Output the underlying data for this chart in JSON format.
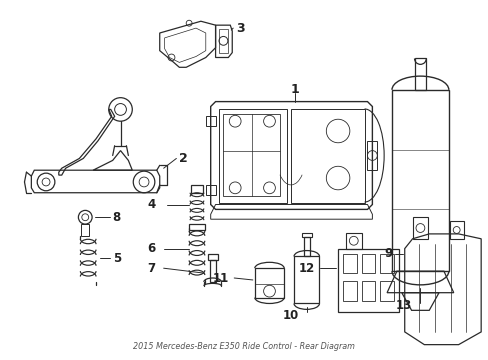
{
  "title": "2015 Mercedes-Benz E350 Ride Control - Rear Diagram",
  "bg": "#ffffff",
  "lc": "#2a2a2a",
  "tc": "#222222",
  "fw": 4.89,
  "fh": 3.6,
  "dpi": 100
}
